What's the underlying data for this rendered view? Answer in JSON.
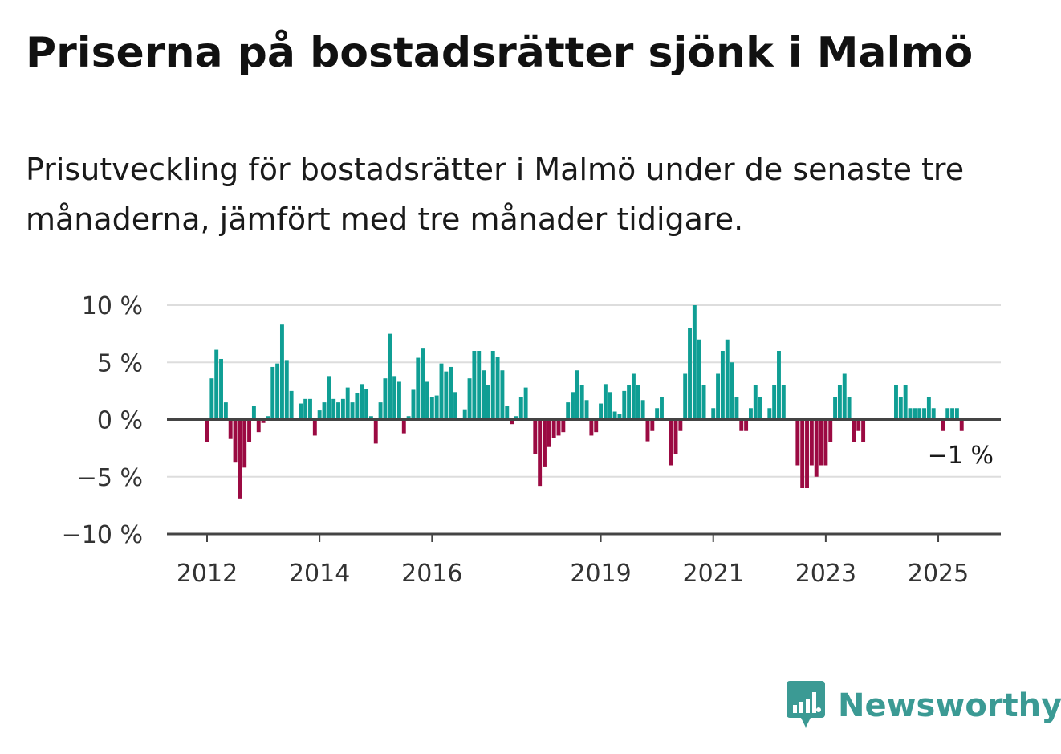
{
  "header": {
    "title": "Priserna på bostadsrätter sjönk i Malmö",
    "subtitle": "Prisutveckling för bostadsrätter i Malmö under de senaste tre månaderna, jämfört med tre månader tidigare."
  },
  "brand": {
    "name": "Newsworthy",
    "icon": "newsworthy-logo-icon",
    "color": "#3b9a94"
  },
  "colors": {
    "positive": "#0f9e94",
    "negative": "#9b0a42",
    "grid": "#dddddd",
    "baseline": "#444444"
  },
  "chart_data": {
    "type": "bar",
    "title": "Priserna på bostadsrätter sjönk i Malmö",
    "subtitle": "Prisutveckling för bostadsrätter i Malmö under de senaste tre månaderna, jämfört med tre månader tidigare.",
    "start": "2012-01",
    "ylim": [
      -10,
      10
    ],
    "y_ticks": [
      "10 %",
      "5 %",
      "0 %",
      "−5 %",
      "−10 %"
    ],
    "y_tick_values": [
      10,
      5,
      0,
      -5,
      -10
    ],
    "x_ticks": [
      "2012",
      "2014",
      "2016",
      "2019",
      "2021",
      "2023",
      "2025"
    ],
    "x_tick_months": [
      0,
      24,
      48,
      84,
      108,
      132,
      156
    ],
    "grid": true,
    "annotation": {
      "label": "−1 %",
      "value": -1
    },
    "values": [
      -2,
      3.6,
      6.1,
      5.3,
      1.5,
      -1.7,
      -3.7,
      -6.9,
      -4.2,
      -2,
      1.2,
      -1.1,
      -0.3,
      0.3,
      4.6,
      4.9,
      8.3,
      5.2,
      2.5,
      0,
      1.4,
      1.8,
      1.8,
      -1.4,
      0.8,
      1.5,
      3.8,
      1.8,
      1.5,
      1.8,
      2.8,
      1.5,
      2.3,
      3.1,
      2.7,
      0.3,
      -2.1,
      1.5,
      3.6,
      7.5,
      3.8,
      3.3,
      -1.2,
      0.3,
      2.6,
      5.4,
      6.2,
      3.3,
      2,
      2.1,
      4.9,
      4.2,
      4.6,
      2.4,
      0,
      0.9,
      3.6,
      6,
      6,
      4.3,
      3,
      6,
      5.5,
      4.3,
      1.2,
      -0.4,
      0.3,
      2,
      2.8,
      0,
      -3,
      -5.8,
      -4.1,
      -2.4,
      -1.6,
      -1.4,
      -1.1,
      1.5,
      2.4,
      4.3,
      3,
      1.7,
      -1.4,
      -1.1,
      1.4,
      3.1,
      2.4,
      0.7,
      0.5,
      2.5,
      3,
      4,
      3,
      1.7,
      -1.9,
      -1,
      1,
      2,
      0,
      -4,
      -3,
      -1,
      4,
      8,
      10,
      7,
      3,
      0,
      1,
      4,
      6,
      7,
      5,
      2,
      -1,
      -1,
      1,
      3,
      2,
      0,
      1,
      3,
      6,
      3,
      0,
      0,
      -4,
      -6,
      -6,
      -4,
      -5,
      -4,
      -4,
      -2,
      2,
      3,
      4,
      2,
      -2,
      -1,
      -2,
      0,
      0,
      0,
      0,
      0,
      0,
      3,
      2,
      3,
      1,
      1,
      1,
      1,
      2,
      1,
      0,
      -1,
      1,
      1,
      1,
      -1
    ]
  }
}
